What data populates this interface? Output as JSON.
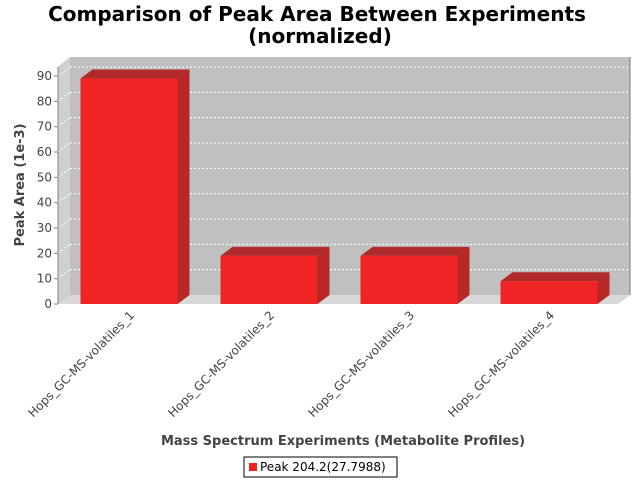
{
  "chart_data": {
    "type": "bar",
    "title_line1": "Comparison of Peak Area Between Experiments",
    "title_line2": "(normalized)",
    "xlabel": "Mass Spectrum Experiments (Metabolite Profiles)",
    "ylabel": "Peak Area (1e-3)",
    "categories": [
      "Hops_GC-MS-volatiles_1",
      "Hops_GC-MS-volatiles_2",
      "Hops_GC-MS-volatiles_3",
      "Hops_GC-MS-volatiles_4"
    ],
    "series": [
      {
        "name": "Peak 204.2(27.7988)",
        "values": [
          89,
          19,
          19,
          9
        ],
        "color": "#f02424"
      }
    ],
    "ylim": [
      0,
      90
    ],
    "yticks": [
      0,
      10,
      20,
      30,
      40,
      50,
      60,
      70,
      80,
      90
    ],
    "grid": true,
    "legend_position": "bottom",
    "plot_background": "#c0c0c0",
    "style": "3d"
  }
}
